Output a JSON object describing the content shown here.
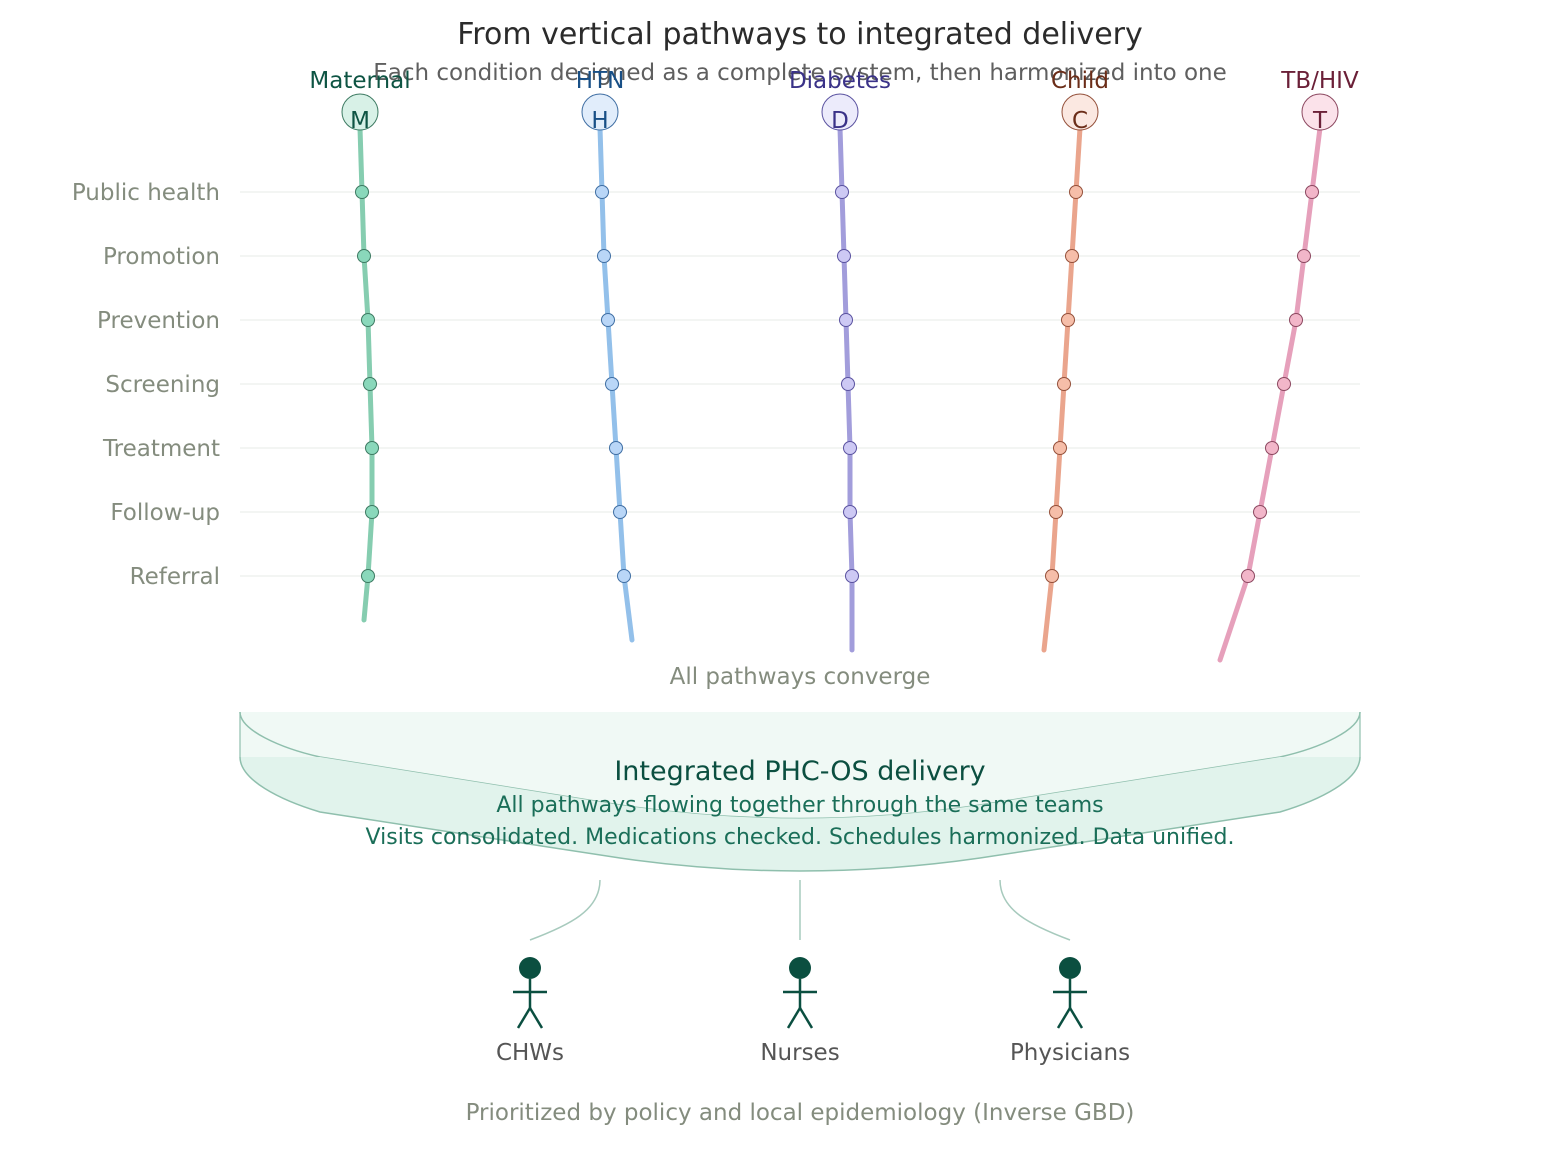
{
  "title": "From vertical pathways to integrated delivery",
  "subtitle": "Each condition designed as a complete system, then harmonized into one",
  "stages": [
    "Public health",
    "Promotion",
    "Prevention",
    "Screening",
    "Treatment",
    "Follow-up",
    "Referral"
  ],
  "pathways": [
    {
      "name": "Maternal",
      "letter": "M",
      "line": "#86cdb0",
      "fill": "#d8f1e7",
      "dot": "#8ad8bb",
      "stroke": "#3d7a62",
      "text": "#0e5443"
    },
    {
      "name": "HTN",
      "letter": "H",
      "line": "#93c0ea",
      "fill": "#e1edfb",
      "dot": "#b9d6f7",
      "stroke": "#3f6ea3",
      "text": "#184f86"
    },
    {
      "name": "Diabetes",
      "letter": "D",
      "line": "#a29ddb",
      "fill": "#ecebfb",
      "dot": "#cdc9f4",
      "stroke": "#5a52a0",
      "text": "#3a3288"
    },
    {
      "name": "Child",
      "letter": "C",
      "line": "#eaa58d",
      "fill": "#fbe8e1",
      "dot": "#f6bea9",
      "stroke": "#94503a",
      "text": "#6b2d18"
    },
    {
      "name": "TB/HIV",
      "letter": "T",
      "line": "#e6a0bb",
      "fill": "#fbe2ea",
      "dot": "#f2b6c9",
      "stroke": "#8c4860",
      "text": "#6b2038"
    }
  ],
  "converge_label": "All pathways converge",
  "integration": {
    "title": "Integrated PHC-OS delivery",
    "line1": "All pathways flowing together through the same teams",
    "line2": "Visits consolidated. Medications checked. Schedules harmonized. Data unified."
  },
  "teams": [
    "CHWs",
    "Nurses",
    "Physicians"
  ],
  "footer": "Prioritized by policy and local epidemiology (Inverse GBD)",
  "colors": {
    "title": "#2b2b2b",
    "subtitle": "#5f5f5f",
    "muted": "#848c7e",
    "dark_green": "#0b4f40",
    "medium_green": "#1a6e58",
    "basin_fill": "#e1f3ec",
    "basin_stroke": "#8fbfad"
  }
}
